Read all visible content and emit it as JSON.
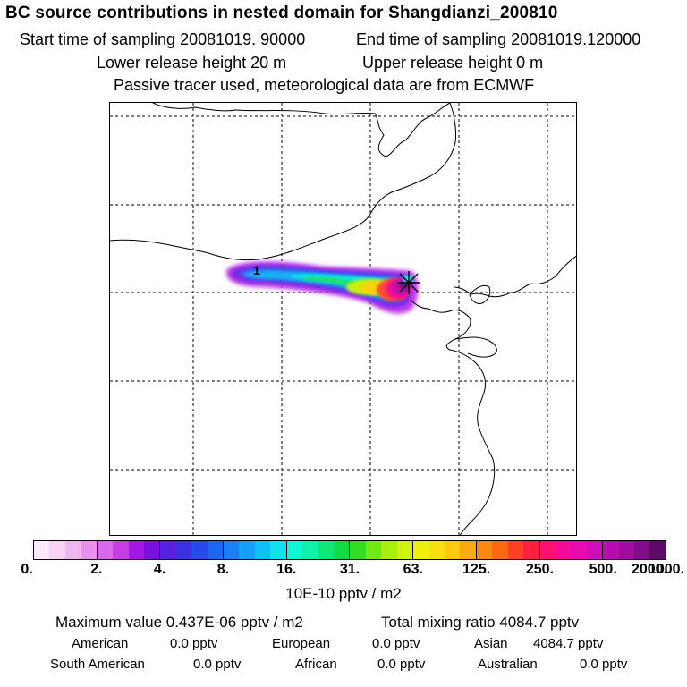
{
  "header": {
    "title": "BC  source contributions in nested domain for Shangdianzi_200810",
    "start_label": "Start time of sampling 20081019. 90000",
    "end_label": "End time of sampling 20081019.120000",
    "lower_label": "Lower release height   20 m",
    "upper_label": "Upper release height    0 m",
    "tracer_label": "Passive tracer used, meteorological data are from ECMWF"
  },
  "map": {
    "site_marker_label": "1",
    "colors": {
      "coast": "#000000",
      "grid": "#000000"
    }
  },
  "legend": {
    "colors": [
      "#fde8fc",
      "#f8d2f6",
      "#f0b4ef",
      "#e890ea",
      "#d66ae8",
      "#c43ee8",
      "#a516e6",
      "#7a10e0",
      "#5a1ee4",
      "#3a30e8",
      "#2848f0",
      "#1c64f2",
      "#1880f4",
      "#14a0f6",
      "#10c0f4",
      "#10e0f0",
      "#10f4d8",
      "#10f0a8",
      "#10e678",
      "#10dc48",
      "#30e020",
      "#70ea10",
      "#a8ee10",
      "#d0f010",
      "#f0f010",
      "#f8e010",
      "#fcc810",
      "#fca810",
      "#fc8810",
      "#fc6810",
      "#fc4020",
      "#fc2040",
      "#fc1070",
      "#f40c98",
      "#e40cb0",
      "#d00cb8",
      "#b80cb0",
      "#a00ca0",
      "#840c88",
      "#5c0a64"
    ],
    "dividers_after": [
      4,
      8,
      12,
      16,
      20,
      24,
      28,
      32,
      36
    ],
    "ticks": [
      "0.",
      "2.",
      "4.",
      "8.",
      "16.",
      "31.",
      "63.",
      "125.",
      "250.",
      "500.",
      "1000.",
      "2000."
    ],
    "units": "10E-10 pptv / m2"
  },
  "stats": {
    "max_label": "Maximum value  0.437E-06 pptv / m2",
    "total_label": "Total mixing ratio     4084.7 pptv",
    "sources": [
      {
        "name": "American",
        "value": "0.0 pptv"
      },
      {
        "name": "European",
        "value": "0.0 pptv"
      },
      {
        "name": "Asian",
        "value": "4084.7 pptv"
      },
      {
        "name": "South American",
        "value": "0.0 pptv"
      },
      {
        "name": "African",
        "value": "0.0 pptv"
      },
      {
        "name": "Australian",
        "value": "0.0 pptv"
      }
    ]
  }
}
